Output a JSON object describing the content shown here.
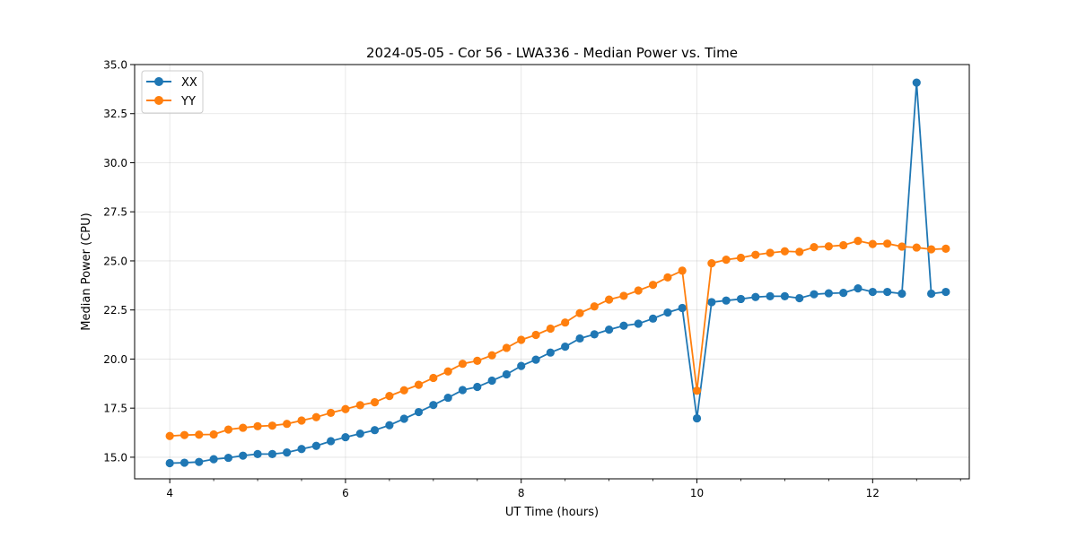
{
  "chart_data": {
    "type": "line",
    "title": "2024-05-05 - Cor 56 - LWA336 - Median Power vs. Time",
    "xlabel": "UT Time (hours)",
    "ylabel": "Median Power (CPU)",
    "xlim": [
      3.6,
      13.1
    ],
    "ylim": [
      13.9,
      35.0
    ],
    "x_ticks": [
      4,
      6,
      8,
      10,
      12
    ],
    "x_tick_labels": [
      "4",
      "6",
      "8",
      "10",
      "12"
    ],
    "y_ticks": [
      15.0,
      17.5,
      20.0,
      22.5,
      25.0,
      27.5,
      30.0,
      32.5,
      35.0
    ],
    "y_tick_labels": [
      "15.0",
      "17.5",
      "20.0",
      "22.5",
      "25.0",
      "27.5",
      "30.0",
      "32.5",
      "35.0"
    ],
    "grid": true,
    "legend_position": "top-left",
    "x": [
      4.0,
      4.167,
      4.333,
      4.5,
      4.667,
      4.833,
      5.0,
      5.167,
      5.333,
      5.5,
      5.667,
      5.833,
      6.0,
      6.167,
      6.333,
      6.5,
      6.667,
      6.833,
      7.0,
      7.167,
      7.333,
      7.5,
      7.667,
      7.833,
      8.0,
      8.167,
      8.333,
      8.5,
      8.667,
      8.833,
      9.0,
      9.167,
      9.333,
      9.5,
      9.667,
      9.833,
      10.0,
      10.167,
      10.333,
      10.5,
      10.667,
      10.833,
      11.0,
      11.167,
      11.333,
      11.5,
      11.667,
      11.833,
      12.0,
      12.167,
      12.333,
      12.5,
      12.667,
      12.833
    ],
    "series": [
      {
        "name": "XX",
        "color": "#1f77b4",
        "values": [
          14.7,
          14.72,
          14.76,
          14.9,
          14.97,
          15.08,
          15.16,
          15.16,
          15.24,
          15.42,
          15.58,
          15.82,
          16.02,
          16.2,
          16.38,
          16.63,
          16.96,
          17.3,
          17.66,
          18.03,
          18.42,
          18.58,
          18.9,
          19.22,
          19.65,
          19.97,
          20.33,
          20.63,
          21.05,
          21.26,
          21.5,
          21.7,
          21.8,
          22.06,
          22.37,
          22.6,
          16.98,
          22.9,
          22.98,
          23.06,
          23.16,
          23.2,
          23.2,
          23.1,
          23.3,
          23.35,
          23.37,
          23.6,
          23.42,
          23.42,
          23.33,
          34.08,
          23.33,
          23.42
        ]
      },
      {
        "name": "YY",
        "color": "#ff7f0e",
        "values": [
          16.08,
          16.13,
          16.15,
          16.16,
          16.41,
          16.5,
          16.58,
          16.61,
          16.7,
          16.87,
          17.04,
          17.26,
          17.45,
          17.65,
          17.8,
          18.12,
          18.41,
          18.69,
          19.04,
          19.37,
          19.76,
          19.91,
          20.19,
          20.57,
          20.98,
          21.23,
          21.55,
          21.86,
          22.34,
          22.68,
          23.03,
          23.22,
          23.49,
          23.78,
          24.16,
          24.5,
          18.39,
          24.88,
          25.06,
          25.16,
          25.31,
          25.41,
          25.49,
          25.46,
          25.7,
          25.74,
          25.8,
          26.02,
          25.86,
          25.88,
          25.73,
          25.68,
          25.59,
          25.62
        ]
      }
    ]
  }
}
